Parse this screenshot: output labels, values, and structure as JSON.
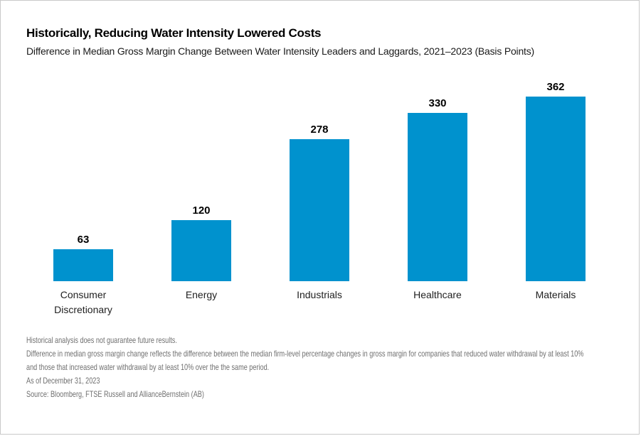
{
  "header": {
    "title": "Historically, Reducing Water Intensity Lowered Costs",
    "subtitle": "Difference in Median Gross Margin Change Between Water Intensity Leaders and Laggards, 2021–2023 (Basis Points)"
  },
  "chart_data": {
    "type": "bar",
    "title": "Historically, Reducing Water Intensity Lowered Costs",
    "subtitle": "Difference in Median Gross Margin Change Between Water Intensity Leaders and Laggards, 2021–2023 (Basis Points)",
    "categories": [
      "Consumer Discretionary",
      "Energy",
      "Industrials",
      "Healthcare",
      "Materials"
    ],
    "values": [
      63,
      120,
      278,
      330,
      362
    ],
    "data_labels": [
      63,
      120,
      278,
      330,
      362
    ],
    "xlabel": "",
    "ylabel": "",
    "ylim": [
      0,
      400
    ],
    "grid": false,
    "legend": false,
    "axis_lines": false,
    "bar_color": "#0092CE"
  },
  "footnotes": {
    "lines": [
      "Historical analysis does not guarantee future results.",
      "Difference in median gross margin change reflects the difference between the median firm-level percentage changes in gross margin for companies that reduced water withdrawal by at least 10%",
      "and those that increased water withdrawal by at least 10% over the the same period.",
      "As of December 31, 2023",
      "Source: Bloomberg, FTSE Russell and AllianceBernstein (AB)"
    ]
  },
  "colors": {
    "bar": "#0092CE",
    "title_text": "#000000",
    "body_text": "#1a1a1a",
    "footnote_text": "#6f6f6f",
    "page_border": "#c9c9c9",
    "background": "#ffffff"
  }
}
